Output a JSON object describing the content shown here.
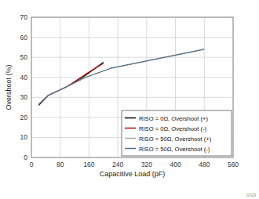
{
  "chart_data": {
    "type": "line",
    "x_label": "Capacitive Load (pF)",
    "y_label": "Overshoot (%)",
    "xlim": [
      0,
      560
    ],
    "xticks": [
      0,
      80,
      160,
      240,
      320,
      400,
      480,
      560
    ],
    "ylim": [
      0,
      70
    ],
    "yticks": [
      0,
      10,
      20,
      30,
      40,
      50,
      60,
      70
    ],
    "grid": true,
    "legend": "lower right",
    "annotations": [
      "D029"
    ],
    "series": [
      {
        "name": "RISO = 0Ω, Overshoot (+)",
        "color": "#000000",
        "x": [
          20,
          47,
          100,
          150,
          200
        ],
        "values": [
          26,
          31,
          35.5,
          41,
          47.5
        ]
      },
      {
        "name": "RISO = 0Ω, Overshoot (-)",
        "color": "#c00000",
        "x": [
          20,
          47,
          100,
          150,
          200
        ],
        "values": [
          26.5,
          31,
          35.5,
          41.5,
          47
        ]
      },
      {
        "name": "RISO = 50Ω, Overshoot (+)",
        "color": "#a6a6a6",
        "x": [
          20,
          47,
          100,
          150,
          220,
          480
        ],
        "values": [
          26.5,
          31,
          35.5,
          40,
          44.5,
          54
        ]
      },
      {
        "name": "RISO = 50Ω, Overshoot (-)",
        "color": "#4f7390",
        "x": [
          20,
          47,
          100,
          150,
          220,
          480
        ],
        "values": [
          26.5,
          31,
          35.5,
          40,
          44.5,
          54
        ]
      }
    ]
  }
}
